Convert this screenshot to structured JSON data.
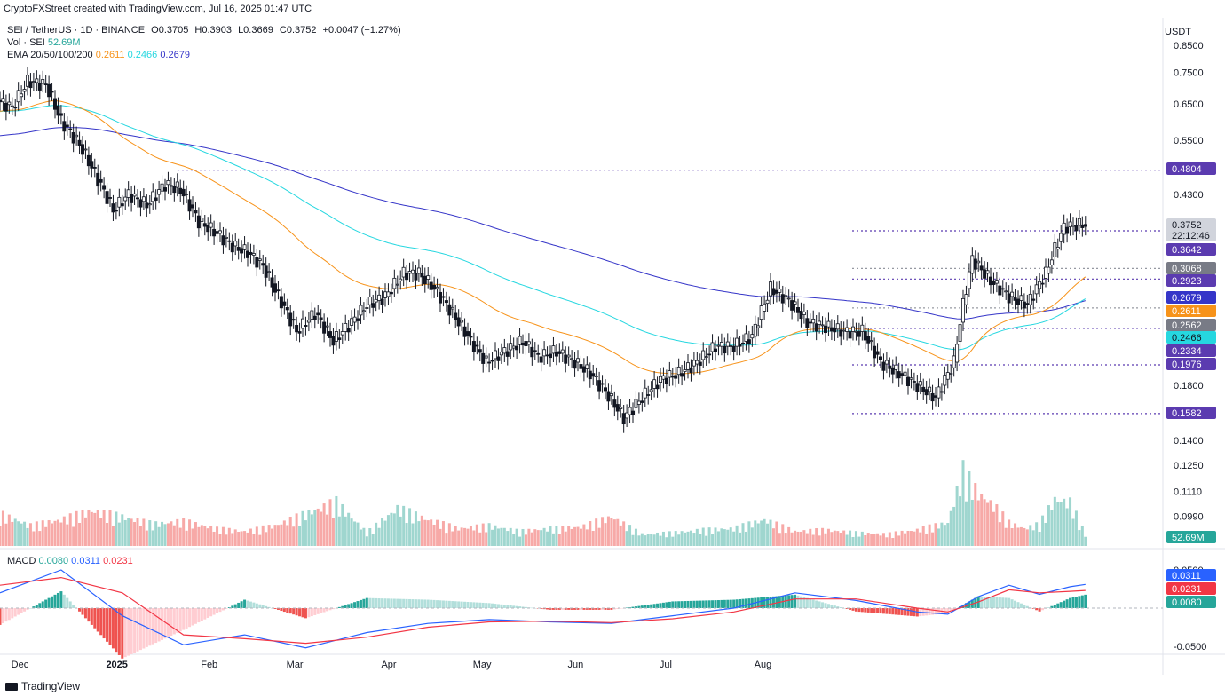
{
  "credit": "CryptoFXStreet created with TradingView.com, Jul 16, 2025 01:47 UTC",
  "symbol_line": {
    "name": "SEI / TetherUS · 1D · BINANCE",
    "o": "O0.3705",
    "h": "H0.3903",
    "l": "L0.3669",
    "c": "C0.3752",
    "change": "+0.0047 (+1.27%)"
  },
  "vol_line": {
    "label": "Vol · SEI",
    "value": "52.69M"
  },
  "ema_line": {
    "label": "EMA 20/50/100/200",
    "v50": "0.2611",
    "v100": "0.2466",
    "v200": "0.2679"
  },
  "macd_line": {
    "label": "MACD",
    "hist": "0.0080",
    "macd": "0.0311",
    "signal": "0.0231"
  },
  "currency": "USDT",
  "footer_brand": "TradingView",
  "colors": {
    "up": "#26a69a",
    "down": "#ef5350",
    "ema50": "#f7931a",
    "ema100": "#26d7e0",
    "ema200": "#3535c8",
    "level": "#5b3bb0",
    "macd": "#2962ff",
    "signal": "#f23645"
  },
  "chart_data": {
    "type": "candlestick",
    "x_ticks": [
      "Dec",
      "2025",
      "Feb",
      "Mar",
      "Apr",
      "May",
      "Jun",
      "Jul",
      "Aug"
    ],
    "y_scale": "log",
    "price_ticks": [
      "0.8500",
      "0.7500",
      "0.6500",
      "0.5500",
      "0.4300",
      "0.1800",
      "0.1400",
      "0.1250",
      "0.1110",
      "0.0990"
    ],
    "macd_ticks": [
      "0.0500",
      "-0.0500"
    ],
    "horizontal_levels": [
      0.4804,
      0.3642,
      0.3068,
      0.2923,
      0.2562,
      0.2334,
      0.1976,
      0.1582
    ],
    "price_labels": [
      {
        "text": "0.3752",
        "sub": "22:12:46",
        "kind": "last"
      },
      {
        "text": "0.4804",
        "kind": "level"
      },
      {
        "text": "0.3642",
        "kind": "level"
      },
      {
        "text": "0.3068",
        "kind": "gray"
      },
      {
        "text": "0.2923",
        "kind": "level"
      },
      {
        "text": "0.2679",
        "kind": "ema200"
      },
      {
        "text": "0.2611",
        "kind": "ema50"
      },
      {
        "text": "0.2562",
        "kind": "gray"
      },
      {
        "text": "0.2466",
        "kind": "ema100"
      },
      {
        "text": "0.2334",
        "kind": "level"
      },
      {
        "text": "0.1976",
        "kind": "level"
      },
      {
        "text": "0.1582",
        "kind": "level"
      }
    ],
    "volume_label": "52.69M",
    "macd_labels": [
      {
        "text": "0.0311",
        "kind": "macd"
      },
      {
        "text": "0.0231",
        "kind": "signal"
      },
      {
        "text": "0.0080",
        "kind": "hist"
      }
    ],
    "price_path": [
      [
        0,
        0.66
      ],
      [
        5,
        0.64
      ],
      [
        10,
        0.72
      ],
      [
        16,
        0.71
      ],
      [
        21,
        0.6
      ],
      [
        27,
        0.54
      ],
      [
        33,
        0.46
      ],
      [
        38,
        0.4
      ],
      [
        43,
        0.43
      ],
      [
        49,
        0.41
      ],
      [
        55,
        0.45
      ],
      [
        60,
        0.44
      ],
      [
        66,
        0.38
      ],
      [
        72,
        0.36
      ],
      [
        77,
        0.34
      ],
      [
        82,
        0.33
      ],
      [
        87,
        0.31
      ],
      [
        92,
        0.27
      ],
      [
        98,
        0.23
      ],
      [
        104,
        0.25
      ],
      [
        110,
        0.22
      ],
      [
        116,
        0.24
      ],
      [
        121,
        0.26
      ],
      [
        127,
        0.27
      ],
      [
        133,
        0.3
      ],
      [
        138,
        0.3
      ],
      [
        143,
        0.28
      ],
      [
        149,
        0.25
      ],
      [
        155,
        0.22
      ],
      [
        160,
        0.2
      ],
      [
        166,
        0.21
      ],
      [
        172,
        0.22
      ],
      [
        177,
        0.205
      ],
      [
        183,
        0.21
      ],
      [
        189,
        0.2
      ],
      [
        194,
        0.19
      ],
      [
        199,
        0.175
      ],
      [
        205,
        0.155
      ],
      [
        211,
        0.17
      ],
      [
        217,
        0.185
      ],
      [
        223,
        0.19
      ],
      [
        229,
        0.2
      ],
      [
        235,
        0.215
      ],
      [
        241,
        0.215
      ],
      [
        247,
        0.225
      ],
      [
        253,
        0.28
      ],
      [
        259,
        0.265
      ],
      [
        265,
        0.24
      ],
      [
        271,
        0.235
      ],
      [
        277,
        0.23
      ],
      [
        283,
        0.23
      ],
      [
        289,
        0.2
      ],
      [
        295,
        0.19
      ],
      [
        301,
        0.18
      ],
      [
        307,
        0.17
      ],
      [
        313,
        0.2
      ],
      [
        319,
        0.32
      ],
      [
        325,
        0.29
      ],
      [
        331,
        0.27
      ],
      [
        337,
        0.26
      ],
      [
        343,
        0.3
      ],
      [
        349,
        0.37
      ],
      [
        355,
        0.375
      ]
    ],
    "volume": [
      [
        0,
        22
      ],
      [
        10,
        14
      ],
      [
        20,
        18
      ],
      [
        30,
        24
      ],
      [
        40,
        20
      ],
      [
        50,
        15
      ],
      [
        60,
        17
      ],
      [
        70,
        12
      ],
      [
        80,
        10
      ],
      [
        90,
        14
      ],
      [
        100,
        22
      ],
      [
        110,
        30
      ],
      [
        120,
        9
      ],
      [
        130,
        26
      ],
      [
        140,
        18
      ],
      [
        150,
        12
      ],
      [
        160,
        14
      ],
      [
        170,
        10
      ],
      [
        180,
        12
      ],
      [
        190,
        13
      ],
      [
        200,
        20
      ],
      [
        210,
        8
      ],
      [
        220,
        9
      ],
      [
        230,
        11
      ],
      [
        240,
        12
      ],
      [
        250,
        18
      ],
      [
        260,
        10
      ],
      [
        270,
        11
      ],
      [
        280,
        9
      ],
      [
        290,
        8
      ],
      [
        300,
        11
      ],
      [
        310,
        16
      ],
      [
        315,
        52
      ],
      [
        320,
        36
      ],
      [
        325,
        28
      ],
      [
        330,
        16
      ],
      [
        335,
        12
      ],
      [
        340,
        15
      ],
      [
        345,
        32
      ],
      [
        350,
        30
      ],
      [
        355,
        8
      ]
    ],
    "macd": [
      [
        0,
        0.02
      ],
      [
        20,
        0.05
      ],
      [
        40,
        -0.01
      ],
      [
        60,
        -0.048
      ],
      [
        80,
        -0.035
      ],
      [
        100,
        -0.052
      ],
      [
        120,
        -0.032
      ],
      [
        140,
        -0.02
      ],
      [
        160,
        -0.015
      ],
      [
        180,
        -0.018
      ],
      [
        200,
        -0.02
      ],
      [
        220,
        -0.01
      ],
      [
        240,
        0.0
      ],
      [
        260,
        0.02
      ],
      [
        280,
        0.01
      ],
      [
        300,
        -0.005
      ],
      [
        310,
        -0.008
      ],
      [
        320,
        0.015
      ],
      [
        330,
        0.03
      ],
      [
        340,
        0.018
      ],
      [
        350,
        0.028
      ],
      [
        355,
        0.0311
      ]
    ],
    "signal": [
      [
        0,
        0.03
      ],
      [
        20,
        0.04
      ],
      [
        40,
        0.02
      ],
      [
        60,
        -0.035
      ],
      [
        80,
        -0.04
      ],
      [
        100,
        -0.046
      ],
      [
        120,
        -0.038
      ],
      [
        140,
        -0.025
      ],
      [
        160,
        -0.018
      ],
      [
        180,
        -0.017
      ],
      [
        200,
        -0.019
      ],
      [
        220,
        -0.014
      ],
      [
        240,
        -0.005
      ],
      [
        260,
        0.012
      ],
      [
        280,
        0.012
      ],
      [
        300,
        0.0
      ],
      [
        310,
        -0.005
      ],
      [
        320,
        0.008
      ],
      [
        330,
        0.024
      ],
      [
        340,
        0.02
      ],
      [
        350,
        0.022
      ],
      [
        355,
        0.0231
      ]
    ]
  }
}
